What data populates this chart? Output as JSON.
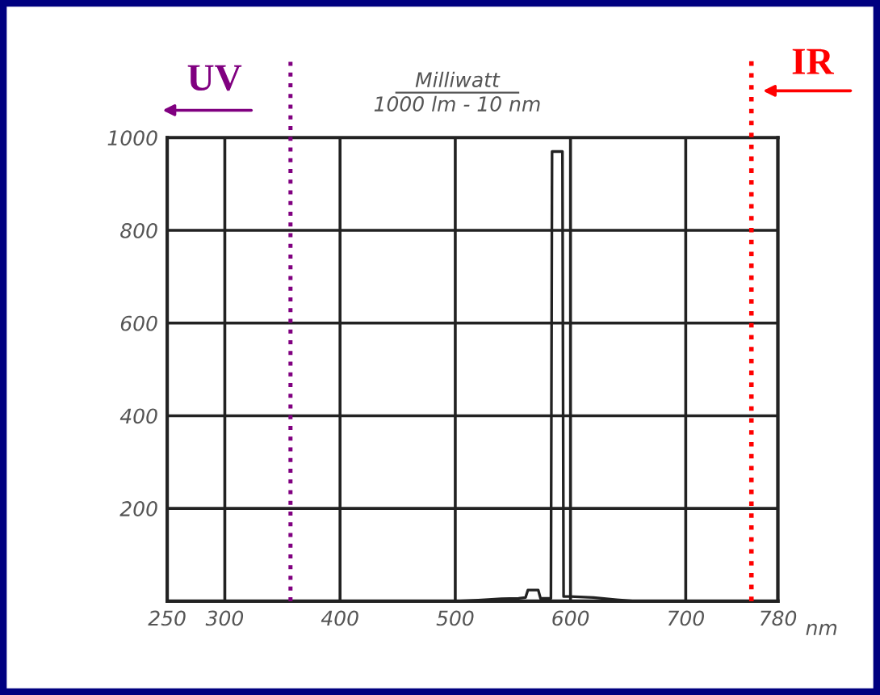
{
  "chart_data": {
    "type": "line",
    "title": "Milliwatt",
    "subtitle": "1000 lm - 10 nm",
    "xlabel": "nm",
    "x": [
      500,
      520,
      540,
      555,
      561,
      563,
      572,
      574,
      583,
      584,
      593,
      594,
      600,
      620,
      640,
      655
    ],
    "series": [
      {
        "color": "#222222",
        "values": [
          0,
          2,
          5,
          6,
          8,
          24,
          24,
          6,
          6,
          970,
          970,
          10,
          10,
          8,
          3,
          0
        ]
      }
    ],
    "xlim": [
      250,
      780
    ],
    "ylim": [
      0,
      1000
    ],
    "xticks": [
      250,
      300,
      400,
      500,
      600,
      700,
      780
    ],
    "yticks": [
      200,
      400,
      600,
      800,
      1000
    ],
    "grid": true,
    "marker": "none",
    "line_style": "solid",
    "ref_lines": [
      {
        "axis": "x",
        "value": 357,
        "label": "UV",
        "color": "#800080",
        "line_style": "dotted"
      },
      {
        "axis": "x",
        "value": 757,
        "label": "IR",
        "color": "#ff0000",
        "line_style": "dotted"
      }
    ]
  }
}
